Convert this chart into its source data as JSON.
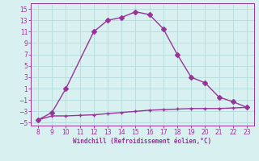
{
  "x_main": [
    8,
    9,
    10,
    12,
    13,
    14,
    15,
    16,
    17,
    18,
    19,
    20,
    21,
    22,
    23
  ],
  "y_main": [
    -4.5,
    -3.2,
    1.0,
    11.0,
    13.0,
    13.5,
    14.5,
    14.0,
    11.5,
    7.0,
    3.0,
    2.0,
    -0.5,
    -1.3,
    -2.3
  ],
  "x_flat": [
    8,
    9,
    10,
    11,
    12,
    13,
    14,
    15,
    16,
    17,
    18,
    19,
    20,
    21,
    22,
    23
  ],
  "y_flat": [
    -4.5,
    -3.8,
    -3.8,
    -3.7,
    -3.6,
    -3.4,
    -3.2,
    -3.0,
    -2.8,
    -2.7,
    -2.6,
    -2.5,
    -2.5,
    -2.5,
    -2.4,
    -2.3
  ],
  "line_color": "#993399",
  "bg_color": "#d8f0f0",
  "grid_color": "#b8dede",
  "xlabel": "Windchill (Refroidissement éolien,°C)",
  "xlim": [
    7.5,
    23.5
  ],
  "ylim": [
    -5.5,
    16.0
  ],
  "xticks": [
    8,
    9,
    10,
    11,
    12,
    13,
    14,
    15,
    16,
    17,
    18,
    19,
    20,
    21,
    22,
    23
  ],
  "yticks": [
    -5,
    -3,
    -1,
    1,
    3,
    5,
    7,
    9,
    11,
    13,
    15
  ],
  "markersize": 3.0,
  "linewidth": 1.0
}
